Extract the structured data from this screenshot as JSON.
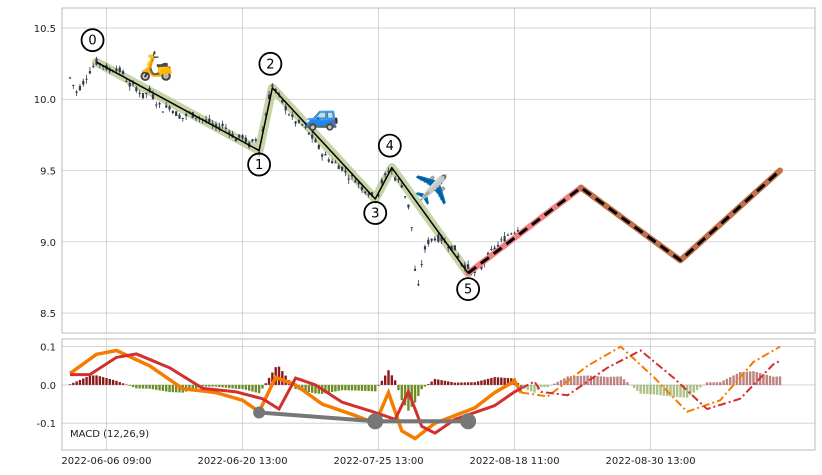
{
  "chart_data": [
    {
      "type": "candlestick",
      "ylim": [
        8.36,
        10.64
      ],
      "y_ticks": [
        "8.5",
        "9.0",
        "9.5",
        "10.0",
        "10.5"
      ],
      "grid": true,
      "price_path": [
        [
          0,
          10.15
        ],
        [
          2,
          10.05
        ],
        [
          4,
          10.12
        ],
        [
          6,
          10.2
        ],
        [
          8,
          10.26
        ],
        [
          10,
          10.24
        ],
        [
          12,
          10.2
        ],
        [
          14,
          10.22
        ],
        [
          16,
          10.18
        ],
        [
          18,
          10.1
        ],
        [
          20,
          10.08
        ],
        [
          22,
          10.02
        ],
        [
          24,
          10.06
        ],
        [
          26,
          9.98
        ],
        [
          28,
          9.93
        ],
        [
          30,
          9.95
        ],
        [
          32,
          9.9
        ],
        [
          34,
          9.87
        ],
        [
          36,
          9.9
        ],
        [
          38,
          9.88
        ],
        [
          40,
          9.86
        ],
        [
          42,
          9.84
        ],
        [
          44,
          9.8
        ],
        [
          46,
          9.82
        ],
        [
          48,
          9.78
        ],
        [
          50,
          9.72
        ],
        [
          52,
          9.74
        ],
        [
          54,
          9.68
        ],
        [
          56,
          9.72
        ],
        [
          57,
          9.64
        ],
        [
          58,
          9.78
        ],
        [
          60,
          10.02
        ],
        [
          61,
          10.1
        ],
        [
          62,
          10.06
        ],
        [
          64,
          9.98
        ],
        [
          66,
          9.9
        ],
        [
          68,
          9.84
        ],
        [
          70,
          9.82
        ],
        [
          72,
          9.76
        ],
        [
          74,
          9.7
        ],
        [
          76,
          9.62
        ],
        [
          78,
          9.58
        ],
        [
          80,
          9.55
        ],
        [
          82,
          9.52
        ],
        [
          84,
          9.46
        ],
        [
          86,
          9.44
        ],
        [
          88,
          9.38
        ],
        [
          90,
          9.35
        ],
        [
          92,
          9.3
        ],
        [
          93,
          9.34
        ],
        [
          94,
          9.42
        ],
        [
          96,
          9.5
        ],
        [
          97,
          9.5
        ],
        [
          98,
          9.45
        ],
        [
          100,
          9.4
        ],
        [
          102,
          9.25
        ],
        [
          103,
          9.1
        ],
        [
          104,
          8.8
        ],
        [
          105,
          8.68
        ],
        [
          106,
          8.85
        ],
        [
          107,
          8.95
        ],
        [
          108,
          9.0
        ],
        [
          110,
          9.03
        ],
        [
          112,
          9.02
        ],
        [
          114,
          8.98
        ],
        [
          116,
          8.95
        ],
        [
          117,
          8.9
        ],
        [
          118,
          8.85
        ],
        [
          120,
          8.82
        ],
        [
          122,
          8.78
        ],
        [
          124,
          8.82
        ],
        [
          126,
          8.9
        ],
        [
          128,
          8.95
        ],
        [
          130,
          9.0
        ],
        [
          132,
          9.05
        ],
        [
          134,
          9.08
        ],
        [
          136,
          9.1
        ]
      ],
      "candles_count": 137,
      "wave_points": [
        {
          "label": "0",
          "x": 8,
          "y": 10.26
        },
        {
          "label": "1",
          "x": 57,
          "y": 9.64
        },
        {
          "label": "2",
          "x": 61,
          "y": 10.08
        },
        {
          "label": "3",
          "x": 92,
          "y": 9.3
        },
        {
          "label": "4",
          "x": 97,
          "y": 9.52
        },
        {
          "label": "5",
          "x": 120,
          "y": 8.78
        }
      ],
      "projection": [
        {
          "x": 120,
          "y": 8.78
        },
        {
          "x": 154,
          "y": 9.38
        },
        {
          "x": 184,
          "y": 8.87
        },
        {
          "x": 214,
          "y": 9.5
        }
      ],
      "emoji_markers": [
        {
          "icon": "🛵",
          "x": 26,
          "y": 10.17
        },
        {
          "icon": "🚙",
          "x": 76,
          "y": 9.82
        },
        {
          "icon": "✈️",
          "x": 109,
          "y": 9.3
        }
      ],
      "colors": {
        "candle": "#2e3a4d",
        "wave_glow": "#b5c48a",
        "wave_line": "#000000",
        "projection_pink": "#f08080",
        "projection_brown": "#c0704a",
        "projection_dash": "#000000",
        "grid": "#cccccc",
        "background": "#ffffff",
        "axes_edge": "#bbbbbb"
      }
    },
    {
      "type": "bar",
      "label": "MACD (12,26,9)",
      "ylim": [
        -0.17,
        0.12
      ],
      "y_ticks": [
        "-0.1",
        "0.0",
        "0.1"
      ],
      "x_ticks": [
        "2022-06-06 09:00",
        "2022-06-20 13:00",
        "2022-07-25 13:00",
        "2022-08-18 11:00",
        "2022-08-30 13:00"
      ],
      "grid": true,
      "histogram_positive_color": "#8b1a1a",
      "histogram_negative_color": "#6b8e23",
      "macd_color": "#f57c00",
      "signal_color": "#d32f2f",
      "divergence_color": "#777777",
      "divergence_points": [
        {
          "x": 57,
          "y": -0.072
        },
        {
          "x": 92,
          "y": -0.095
        },
        {
          "x": 120,
          "y": -0.095
        }
      ]
    }
  ]
}
